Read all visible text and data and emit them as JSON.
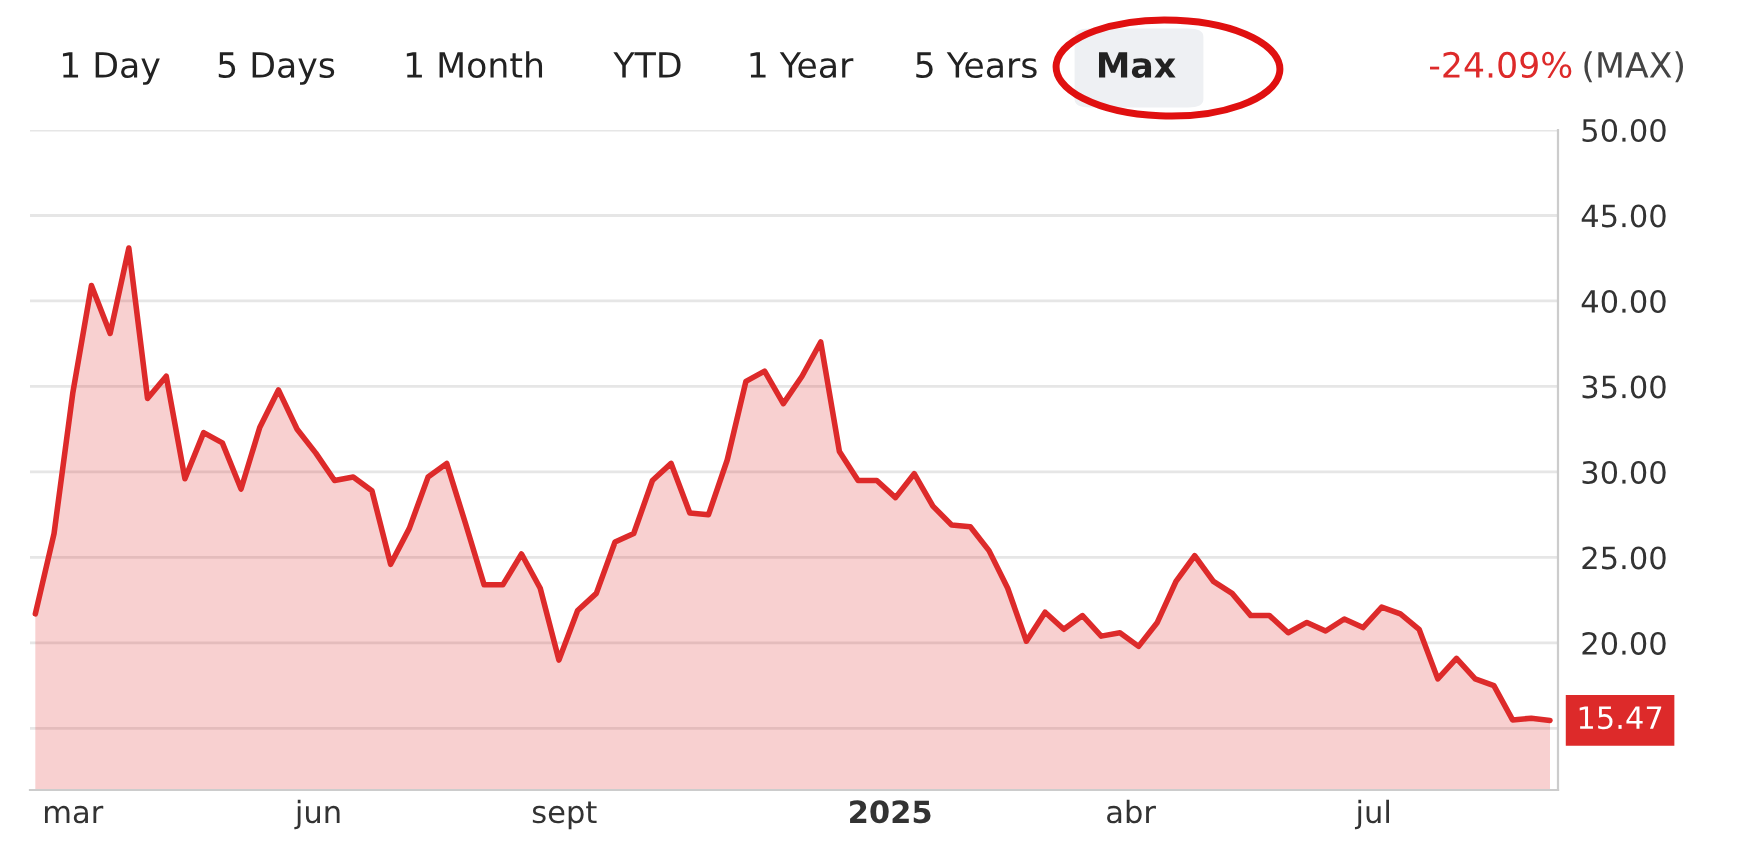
{
  "chart_data": {
    "type": "area",
    "annotations": [
      "1 Day",
      "5 Days",
      "1 Month",
      "YTD",
      "1 Year",
      "5 Years",
      "Max",
      "-24.09%",
      "(MAX)",
      {
        "text": "15.47",
        "x": "2025-09-05",
        "y": 15.47
      }
    ],
    "x": [
      "2024-02-16",
      "2024-02-23",
      "2024-03-01",
      "2024-03-08",
      "2024-03-15",
      "2024-03-22",
      "2024-03-29",
      "2024-04-05",
      "2024-04-12",
      "2024-04-19",
      "2024-04-26",
      "2024-05-03",
      "2024-05-10",
      "2024-05-17",
      "2024-05-24",
      "2024-05-31",
      "2024-06-07",
      "2024-06-14",
      "2024-06-21",
      "2024-06-28",
      "2024-07-05",
      "2024-07-12",
      "2024-07-19",
      "2024-07-26",
      "2024-08-02",
      "2024-08-09",
      "2024-08-16",
      "2024-08-23",
      "2024-08-30",
      "2024-09-06",
      "2024-09-13",
      "2024-09-20",
      "2024-09-27",
      "2024-10-04",
      "2024-10-11",
      "2024-10-18",
      "2024-10-25",
      "2024-11-01",
      "2024-11-08",
      "2024-11-15",
      "2024-11-22",
      "2024-11-29",
      "2024-12-06",
      "2024-12-13",
      "2024-12-20",
      "2024-12-27",
      "2025-01-03",
      "2025-01-10",
      "2025-01-17",
      "2025-01-24",
      "2025-01-31",
      "2025-02-07",
      "2025-02-14",
      "2025-02-21",
      "2025-02-28",
      "2025-03-07",
      "2025-03-14",
      "2025-03-21",
      "2025-03-28",
      "2025-04-04",
      "2025-04-11",
      "2025-04-18",
      "2025-04-25",
      "2025-05-02",
      "2025-05-09",
      "2025-05-16",
      "2025-05-23",
      "2025-05-30",
      "2025-06-06",
      "2025-06-13",
      "2025-06-20",
      "2025-06-27",
      "2025-07-04",
      "2025-07-11",
      "2025-07-18",
      "2025-07-25",
      "2025-08-01",
      "2025-08-08",
      "2025-08-15",
      "2025-08-22",
      "2025-08-29",
      "2025-09-05"
    ],
    "series": [
      {
        "color": "#dd2a2a",
        "values": [
          21.7,
          26.4,
          34.6,
          40.9,
          38.1,
          43.1,
          34.3,
          35.6,
          29.6,
          32.3,
          31.7,
          29.0,
          32.6,
          34.8,
          32.5,
          31.1,
          29.5,
          29.7,
          28.9,
          24.6,
          26.7,
          29.7,
          30.5,
          27.0,
          23.4,
          23.4,
          25.2,
          23.2,
          19.0,
          21.9,
          22.9,
          25.9,
          26.4,
          29.5,
          30.5,
          27.6,
          27.5,
          30.7,
          35.3,
          35.9,
          34.0,
          35.6,
          37.6,
          31.2,
          29.5,
          29.5,
          28.5,
          29.9,
          28.0,
          26.9,
          26.8,
          25.4,
          23.2,
          20.1,
          21.8,
          20.8,
          21.6,
          20.4,
          20.6,
          19.8,
          21.2,
          23.6,
          25.1,
          23.6,
          22.9,
          21.6,
          21.6,
          20.6,
          21.2,
          20.7,
          21.4,
          20.9,
          22.1,
          21.7,
          20.8,
          17.9,
          19.1,
          17.9,
          17.5,
          15.5,
          15.6,
          15.47
        ]
      }
    ],
    "xlim": [
      "2024-02-14",
      "2025-09-08"
    ],
    "xticks": [
      {
        "value": "2024-03-01",
        "label": "mar"
      },
      {
        "value": "2024-06-01",
        "label": "jun"
      },
      {
        "value": "2024-09-01",
        "label": "sept"
      },
      {
        "value": "2025-01-01",
        "label": "2025"
      },
      {
        "value": "2025-04-01",
        "label": "abr"
      },
      {
        "value": "2025-07-01",
        "label": "jul"
      }
    ],
    "ylim": [
      11.4,
      50
    ],
    "yticks": [
      {
        "value": 15,
        "label": null
      },
      {
        "value": 20,
        "label": "20.00"
      },
      {
        "value": 25,
        "label": "25.00"
      },
      {
        "value": 30,
        "label": "30.00"
      },
      {
        "value": 35,
        "label": "35.00"
      },
      {
        "value": 40,
        "label": "40.00"
      },
      {
        "value": 45,
        "label": "45.00"
      },
      {
        "value": 50,
        "label": "50.00"
      }
    ],
    "grid": "y",
    "legend": false,
    "marker": "none",
    "line_style": "solid"
  }
}
